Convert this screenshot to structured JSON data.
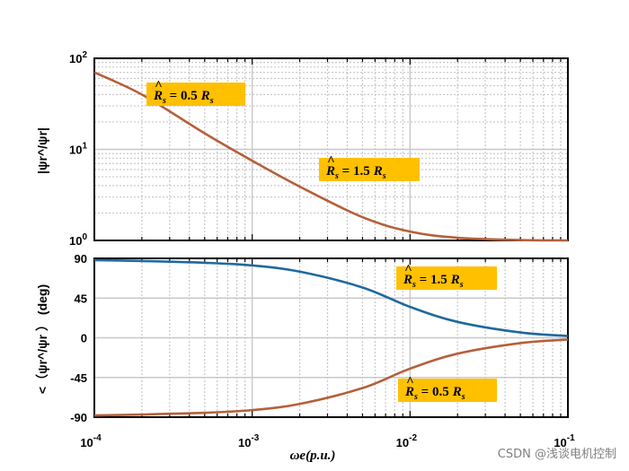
{
  "chart_data": [
    {
      "type": "line",
      "panel": "magnitude",
      "ylabel": "|ψr^/ψr|",
      "x_scale": "log",
      "y_scale": "log",
      "xlim": [
        0.0001,
        0.1
      ],
      "ylim": [
        1,
        100
      ],
      "yticks": [
        {
          "value": 1,
          "base": "10",
          "exp": "0"
        },
        {
          "value": 10,
          "base": "10",
          "exp": "1"
        },
        {
          "value": 100,
          "base": "10",
          "exp": "2"
        }
      ],
      "grid": true,
      "series": [
        {
          "color": "#b5603a",
          "x": [
            0.0001,
            0.0002,
            0.0005,
            0.001,
            0.002,
            0.005,
            0.01,
            0.02,
            0.05,
            0.1
          ],
          "y": [
            70,
            40,
            15,
            7.5,
            3.9,
            1.8,
            1.25,
            1.07,
            1.01,
            1.0
          ]
        }
      ],
      "annotations": [
        {
          "text_main": "R",
          "text_sub": "s",
          "text_eq": " = 0.5",
          "text_r2": "R",
          "text_sub2": "s"
        },
        {
          "text_main": "R",
          "text_sub": "s",
          "text_eq": " = 1.5",
          "text_r2": "R",
          "text_sub2": "s"
        }
      ]
    },
    {
      "type": "line",
      "panel": "phase",
      "ylabel": "<（ψr^/ψr ） (deg)",
      "xlabel": "ωe(p.u.)",
      "x_scale": "log",
      "xlim": [
        0.0001,
        0.1
      ],
      "ylim": [
        -90,
        90
      ],
      "yticks": [
        90,
        45,
        0,
        -45,
        -90
      ],
      "xticks": [
        {
          "value": 0.0001,
          "base": "10",
          "exp": "-4"
        },
        {
          "value": 0.001,
          "base": "10",
          "exp": "-3"
        },
        {
          "value": 0.01,
          "base": "10",
          "exp": "-2"
        },
        {
          "value": 0.1,
          "base": "10",
          "exp": "-1"
        }
      ],
      "grid": true,
      "series": [
        {
          "color": "#1f6a9c",
          "x": [
            0.0001,
            0.0002,
            0.0005,
            0.001,
            0.002,
            0.005,
            0.01,
            0.02,
            0.05,
            0.1
          ],
          "y": [
            88,
            87,
            85,
            82,
            75,
            57,
            35,
            18,
            6,
            2
          ]
        },
        {
          "color": "#b5603a",
          "x": [
            0.0001,
            0.0002,
            0.0005,
            0.001,
            0.002,
            0.005,
            0.01,
            0.02,
            0.05,
            0.1
          ],
          "y": [
            -88,
            -87,
            -85,
            -82,
            -75,
            -57,
            -35,
            -18,
            -6,
            -2
          ]
        }
      ],
      "annotations": [
        {
          "text_main": "R",
          "text_sub": "s",
          "text_eq": " = 1.5",
          "text_r2": "R",
          "text_sub2": "s"
        },
        {
          "text_main": "R",
          "text_sub": "s",
          "text_eq": " = 0.5",
          "text_r2": "R",
          "text_sub2": "s"
        }
      ]
    }
  ],
  "watermark": "CSDN @浅谈电机控制",
  "colors": {
    "annotation_bg": "#ffc000",
    "grid": "#c8c8c8"
  }
}
